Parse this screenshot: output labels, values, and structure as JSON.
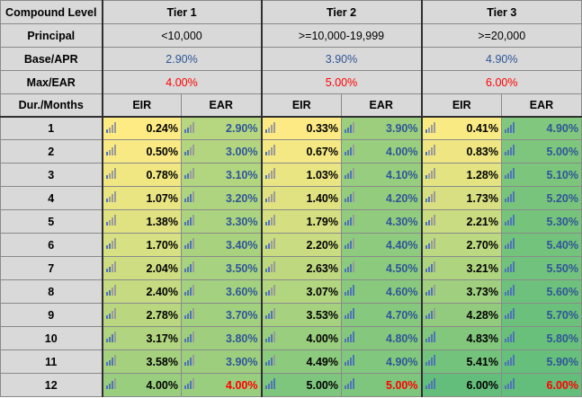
{
  "header": {
    "compound_level": "Compound Level",
    "tiers": [
      "Tier 1",
      "Tier 2",
      "Tier 3"
    ]
  },
  "principal": {
    "label": "Principal",
    "values": [
      "<10,000",
      ">=10,000-19,999",
      ">=20,000"
    ]
  },
  "base_apr": {
    "label": "Base/APR",
    "values": [
      "2.90%",
      "3.90%",
      "4.90%"
    ]
  },
  "max_ear": {
    "label": "Max/EAR",
    "values": [
      "4.00%",
      "5.00%",
      "6.00%"
    ]
  },
  "columns": {
    "duration": "Dur./Months",
    "eir": "EIR",
    "ear": "EAR"
  },
  "rows": [
    {
      "month": "1",
      "t1_eir": "0.24%",
      "t1_ear": "2.90%",
      "t2_eir": "0.33%",
      "t2_ear": "3.90%",
      "t3_eir": "0.41%",
      "t3_ear": "4.90%"
    },
    {
      "month": "2",
      "t1_eir": "0.50%",
      "t1_ear": "3.00%",
      "t2_eir": "0.67%",
      "t2_ear": "4.00%",
      "t3_eir": "0.83%",
      "t3_ear": "5.00%"
    },
    {
      "month": "3",
      "t1_eir": "0.78%",
      "t1_ear": "3.10%",
      "t2_eir": "1.03%",
      "t2_ear": "4.10%",
      "t3_eir": "1.28%",
      "t3_ear": "5.10%"
    },
    {
      "month": "4",
      "t1_eir": "1.07%",
      "t1_ear": "3.20%",
      "t2_eir": "1.40%",
      "t2_ear": "4.20%",
      "t3_eir": "1.73%",
      "t3_ear": "5.20%"
    },
    {
      "month": "5",
      "t1_eir": "1.38%",
      "t1_ear": "3.30%",
      "t2_eir": "1.79%",
      "t2_ear": "4.30%",
      "t3_eir": "2.21%",
      "t3_ear": "5.30%"
    },
    {
      "month": "6",
      "t1_eir": "1.70%",
      "t1_ear": "3.40%",
      "t2_eir": "2.20%",
      "t2_ear": "4.40%",
      "t3_eir": "2.70%",
      "t3_ear": "5.40%"
    },
    {
      "month": "7",
      "t1_eir": "2.04%",
      "t1_ear": "3.50%",
      "t2_eir": "2.63%",
      "t2_ear": "4.50%",
      "t3_eir": "3.21%",
      "t3_ear": "5.50%"
    },
    {
      "month": "8",
      "t1_eir": "2.40%",
      "t1_ear": "3.60%",
      "t2_eir": "3.07%",
      "t2_ear": "4.60%",
      "t3_eir": "3.73%",
      "t3_ear": "5.60%"
    },
    {
      "month": "9",
      "t1_eir": "2.78%",
      "t1_ear": "3.70%",
      "t2_eir": "3.53%",
      "t2_ear": "4.70%",
      "t3_eir": "4.28%",
      "t3_ear": "5.70%"
    },
    {
      "month": "10",
      "t1_eir": "3.17%",
      "t1_ear": "3.80%",
      "t2_eir": "4.00%",
      "t2_ear": "4.80%",
      "t3_eir": "4.83%",
      "t3_ear": "5.80%"
    },
    {
      "month": "11",
      "t1_eir": "3.58%",
      "t1_ear": "3.90%",
      "t2_eir": "4.49%",
      "t2_ear": "4.90%",
      "t3_eir": "5.41%",
      "t3_ear": "5.90%"
    },
    {
      "month": "12",
      "t1_eir": "4.00%",
      "t1_ear": "4.00%",
      "t2_eir": "5.00%",
      "t2_ear": "5.00%",
      "t3_eir": "6.00%",
      "t3_ear": "6.00%"
    }
  ],
  "colors": {
    "header_bg": "#d9d9d9",
    "blue_text": "#2f5597",
    "red_text": "#ff0000",
    "scale_low": "#ffeb84",
    "scale_high": "#63be7b",
    "icon_bar": "#4f74b5"
  },
  "icons": {
    "data_bar": "signal-bars-icon"
  }
}
